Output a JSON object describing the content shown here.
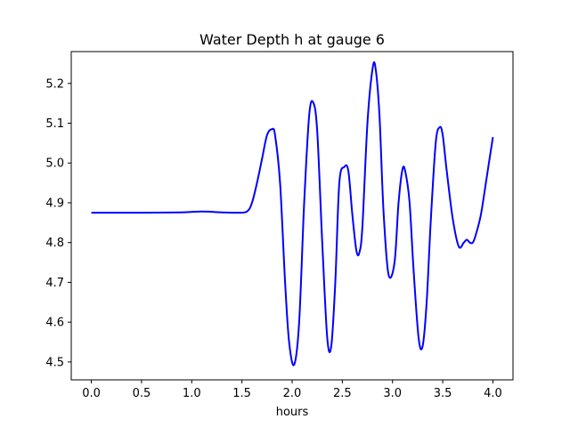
{
  "chart_data": {
    "type": "line",
    "title": "Water Depth h at gauge 6",
    "xlabel": "hours",
    "ylabel": "",
    "xlim": [
      -0.2,
      4.2
    ],
    "ylim": [
      4.455,
      5.28
    ],
    "xticks": [
      0.0,
      0.5,
      1.0,
      1.5,
      2.0,
      2.5,
      3.0,
      3.5,
      4.0
    ],
    "xtick_labels": [
      "0.0",
      "0.5",
      "1.0",
      "1.5",
      "2.0",
      "2.5",
      "3.0",
      "3.5",
      "4.0"
    ],
    "yticks": [
      4.5,
      4.6,
      4.7,
      4.8,
      4.9,
      5.0,
      5.1,
      5.2
    ],
    "ytick_labels": [
      "4.5",
      "4.6",
      "4.7",
      "4.8",
      "4.9",
      "5.0",
      "5.1",
      "5.2"
    ],
    "grid": false,
    "legend": null,
    "series": [
      {
        "color": "#0000ff",
        "x": [
          0.0,
          0.5,
          0.9,
          1.1,
          1.3,
          1.45,
          1.55,
          1.6,
          1.65,
          1.7,
          1.75,
          1.8,
          1.83,
          1.88,
          1.93,
          1.97,
          2.02,
          2.07,
          2.12,
          2.17,
          2.21,
          2.25,
          2.3,
          2.35,
          2.39,
          2.43,
          2.47,
          2.52,
          2.56,
          2.6,
          2.64,
          2.67,
          2.7,
          2.75,
          2.8,
          2.83,
          2.87,
          2.91,
          2.96,
          3.02,
          3.06,
          3.1,
          3.13,
          3.17,
          3.21,
          3.26,
          3.3,
          3.34,
          3.38,
          3.43,
          3.47,
          3.5,
          3.54,
          3.6,
          3.66,
          3.71,
          3.74,
          3.77,
          3.8,
          3.83,
          3.88,
          3.93,
          3.96,
          4.0
        ],
        "y": [
          4.875,
          4.875,
          4.876,
          4.878,
          4.876,
          4.875,
          4.878,
          4.9,
          4.95,
          5.01,
          5.07,
          5.085,
          5.07,
          4.95,
          4.7,
          4.55,
          4.493,
          4.6,
          4.9,
          5.12,
          5.152,
          5.08,
          4.8,
          4.56,
          4.54,
          4.7,
          4.95,
          4.99,
          4.98,
          4.87,
          4.78,
          4.775,
          4.84,
          5.1,
          5.235,
          5.24,
          5.12,
          4.88,
          4.72,
          4.75,
          4.9,
          4.985,
          4.975,
          4.9,
          4.73,
          4.56,
          4.54,
          4.65,
          4.85,
          5.05,
          5.09,
          5.07,
          4.98,
          4.86,
          4.79,
          4.8,
          4.807,
          4.8,
          4.8,
          4.82,
          4.87,
          4.95,
          5.0,
          5.065
        ]
      }
    ]
  }
}
